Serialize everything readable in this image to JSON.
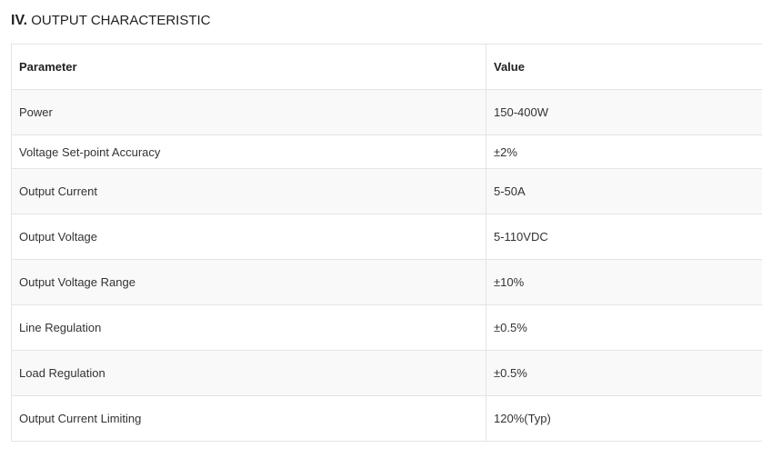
{
  "section": {
    "roman": "IV.",
    "title": "OUTPUT CHARACTERISTIC"
  },
  "table": {
    "headers": {
      "parameter": "Parameter",
      "value": "Value"
    },
    "rows": [
      {
        "parameter": "Power",
        "value": "150-400W"
      },
      {
        "parameter": "Voltage Set-point Accuracy",
        "value": "±2%"
      },
      {
        "parameter": "Output Current",
        "value": "5-50A"
      },
      {
        "parameter": "Output Voltage",
        "value": "5-110VDC"
      },
      {
        "parameter": "Output Voltage Range",
        "value": "±10%"
      },
      {
        "parameter": "Line Regulation",
        "value": "±0.5%"
      },
      {
        "parameter": "Load Regulation",
        "value": "±0.5%"
      },
      {
        "parameter": "Output Current Limiting",
        "value": "120%(Typ)"
      }
    ]
  }
}
